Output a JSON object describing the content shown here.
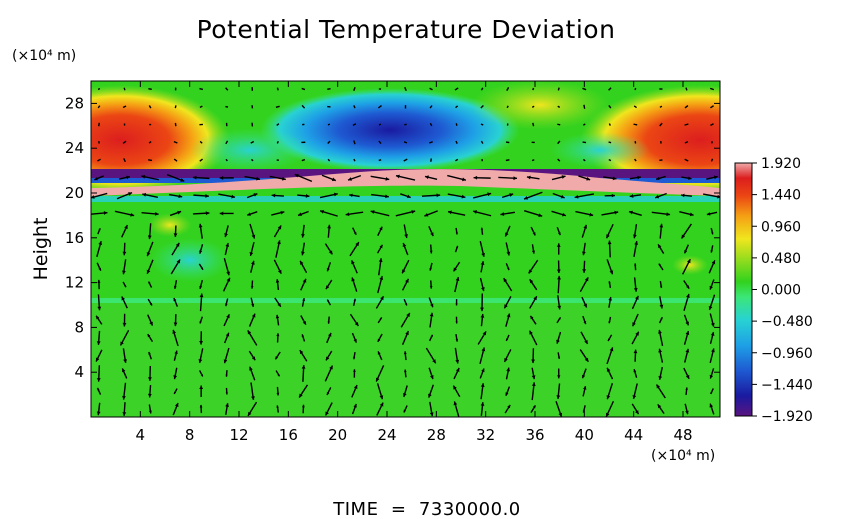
{
  "chart_data": {
    "type": "heatmap",
    "title": "Potential Temperature Deviation",
    "ylabel": "Height",
    "y_unit_label": "(×10⁴ m)",
    "x_unit_label": "(×10⁴ m)",
    "xlim": [
      0,
      51
    ],
    "ylim": [
      0,
      30
    ],
    "x_ticks": [
      4,
      8,
      12,
      16,
      20,
      24,
      28,
      32,
      36,
      40,
      44,
      48
    ],
    "y_ticks": [
      4,
      8,
      12,
      16,
      20,
      24,
      28
    ],
    "colorbar": {
      "range": [
        -1.92,
        1.92
      ],
      "tick_values": [
        1.92,
        1.44,
        0.96,
        0.48,
        0.0,
        -0.48,
        -0.96,
        -1.44,
        -1.92
      ],
      "tick_labels": [
        "1.920",
        "1.440",
        "0.960",
        "0.480",
        "0.000",
        "−0.480",
        "−0.960",
        "−1.440",
        "−1.920"
      ],
      "colors": [
        "#5a1480",
        "#1a1aa0",
        "#1e5ad2",
        "#1ea0e6",
        "#28d2d2",
        "#3ce678",
        "#32d21e",
        "#96dc1e",
        "#f0e61e",
        "#f5a014",
        "#eb4614",
        "#dc1e1e",
        "#f0aaaa"
      ]
    },
    "field_features": [
      {
        "label": "warm anomaly top-left",
        "x": 3,
        "y": 24.5,
        "value": 1.9
      },
      {
        "label": "warm anomaly top-right",
        "x": 50,
        "y": 24.5,
        "value": 1.9
      },
      {
        "label": "cold anomaly top-center",
        "x": 25,
        "y": 25,
        "value": -1.8
      },
      {
        "label": "warm band",
        "x": 26,
        "y": 20.8,
        "value": 1.8
      },
      {
        "label": "cold band",
        "x": 10,
        "y": 21.6,
        "value": -1.6
      }
    ],
    "background_value": 0.3,
    "vector_field": "wind arrows on regular grid"
  },
  "footer": {
    "time_label": "TIME  =  7330000.0"
  }
}
